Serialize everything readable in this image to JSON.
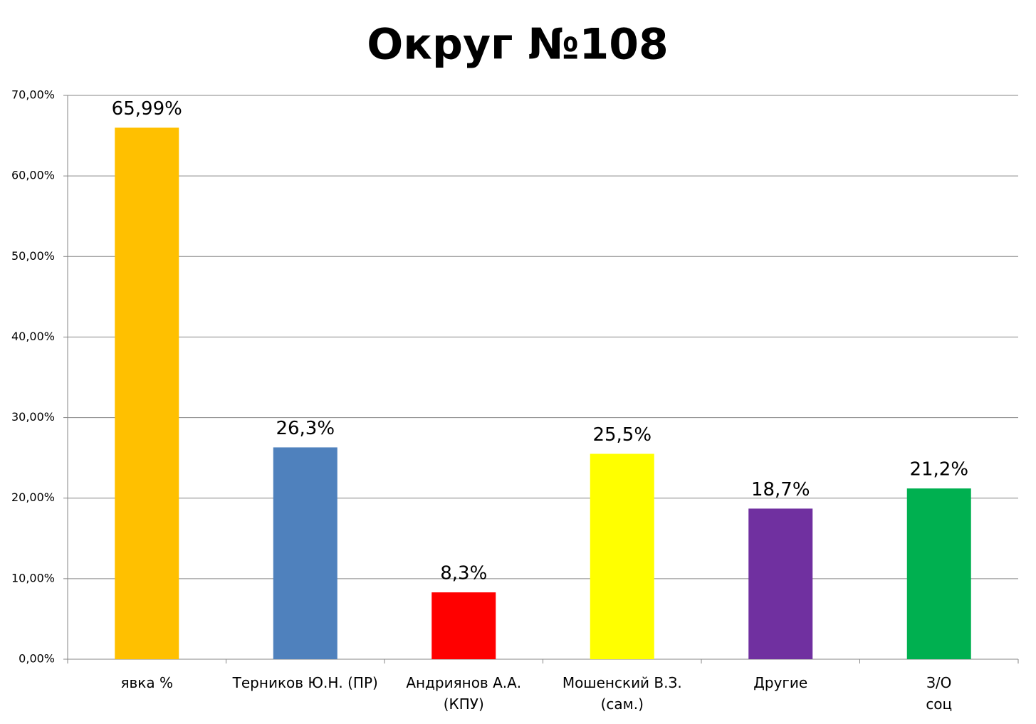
{
  "chart_data": {
    "type": "bar",
    "title": "Округ №108",
    "categories": [
      "явка %",
      "Терников Ю.Н. (ПР)",
      "Андриянов А.А.\n(КПУ)",
      "Мошенский В.З.\n(сам.)",
      "Другие",
      "З/О\nсоц"
    ],
    "values": [
      65.99,
      26.3,
      8.3,
      25.5,
      18.7,
      21.2
    ],
    "value_labels": [
      "65,99%",
      "26,3%",
      "8,3%",
      "25,5%",
      "18,7%",
      "21,2%"
    ],
    "colors": [
      "#FFC000",
      "#4F81BD",
      "#FF0000",
      "#FFFF00",
      "#7030A0",
      "#00B050"
    ],
    "ylim": [
      0,
      70
    ],
    "yticks": [
      {
        "value": 0,
        "label": "0,00%"
      },
      {
        "value": 10,
        "label": "10,00%"
      },
      {
        "value": 20,
        "label": "20,00%"
      },
      {
        "value": 30,
        "label": "30,00%"
      },
      {
        "value": 40,
        "label": "40,00%"
      },
      {
        "value": 50,
        "label": "50,00%"
      },
      {
        "value": 60,
        "label": "60,00%"
      },
      {
        "value": 70,
        "label": "70,00%"
      }
    ],
    "grid": true
  }
}
